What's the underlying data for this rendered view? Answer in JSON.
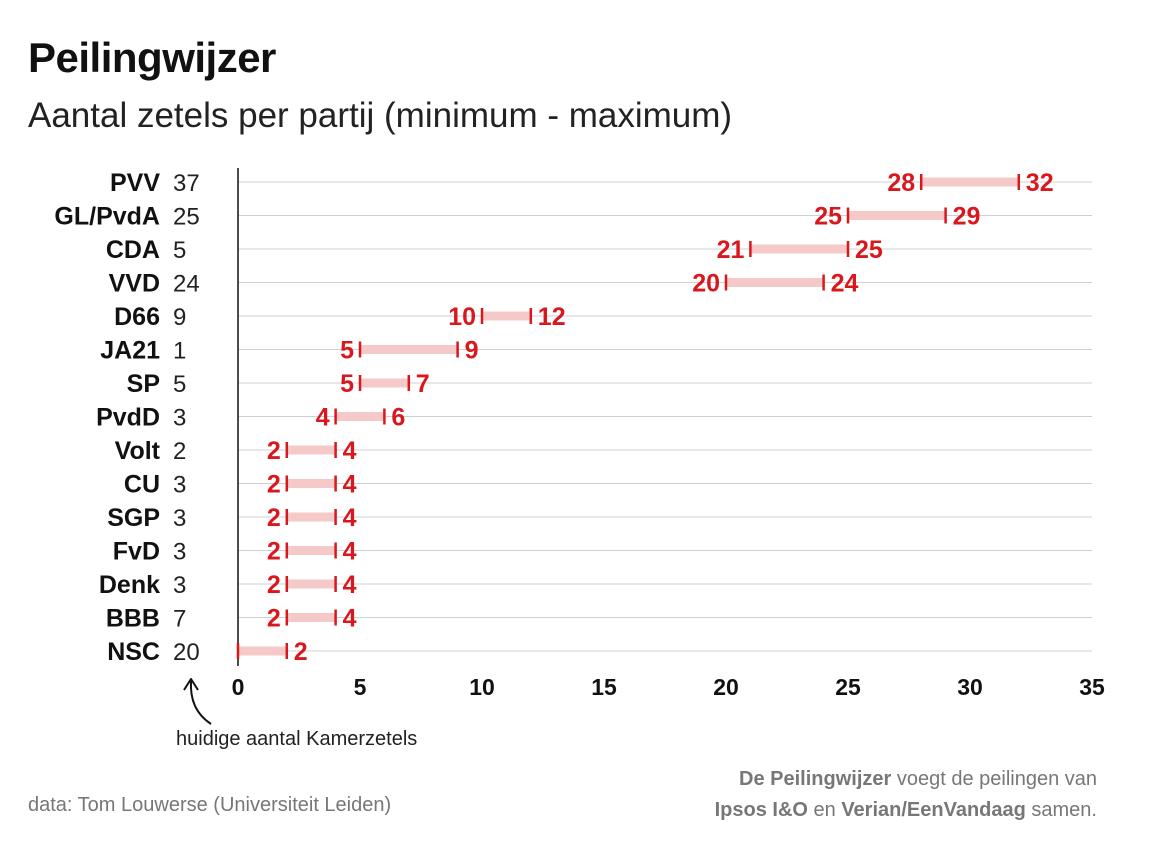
{
  "header": {
    "title": "Peilingwijzer",
    "subtitle": "Aantal zetels per partij (minimum - maximum)"
  },
  "annotation": {
    "current_seats_label": "huidige aantal Kamerzetels"
  },
  "footer": {
    "source": "data: Tom Louwerse (Universiteit Leiden)",
    "note_bold_1": "De Peilingwijzer",
    "note_text_1": " voegt de peilingen van",
    "note_bold_2": "Ipsos I&O",
    "note_text_2": " en ",
    "note_bold_3": "Verian/EenVandaag",
    "note_text_3": " samen."
  },
  "colors": {
    "range_bar": "#f6c9c9",
    "range_label": "#d9181e",
    "gridline": "#d0d0d0",
    "axis": "#111111"
  },
  "chart_data": {
    "type": "range",
    "title": "Peilingwijzer",
    "subtitle": "Aantal zetels per partij (minimum - maximum)",
    "xlim": [
      0,
      35
    ],
    "xticks": [
      0,
      5,
      10,
      15,
      20,
      25,
      30,
      35
    ],
    "grid": true,
    "categories": [
      "PVV",
      "GL/PvdA",
      "CDA",
      "VVD",
      "D66",
      "JA21",
      "SP",
      "PvdD",
      "Volt",
      "CU",
      "SGP",
      "FvD",
      "Denk",
      "BBB",
      "NSC"
    ],
    "current_seats": [
      37,
      25,
      5,
      24,
      9,
      1,
      5,
      3,
      2,
      3,
      3,
      3,
      3,
      7,
      20
    ],
    "min": [
      28,
      25,
      21,
      20,
      10,
      5,
      5,
      4,
      2,
      2,
      2,
      2,
      2,
      2,
      0
    ],
    "max": [
      32,
      29,
      25,
      24,
      12,
      9,
      7,
      6,
      4,
      4,
      4,
      4,
      4,
      4,
      2
    ],
    "min_labels": [
      "28",
      "25",
      "21",
      "20",
      "10",
      "5",
      "5",
      "4",
      "2",
      "2",
      "2",
      "2",
      "2",
      "2",
      ""
    ],
    "max_labels": [
      "32",
      "29",
      "25",
      "24",
      "12",
      "9",
      "7",
      "6",
      "4",
      "4",
      "4",
      "4",
      "4",
      "4",
      "2"
    ]
  }
}
